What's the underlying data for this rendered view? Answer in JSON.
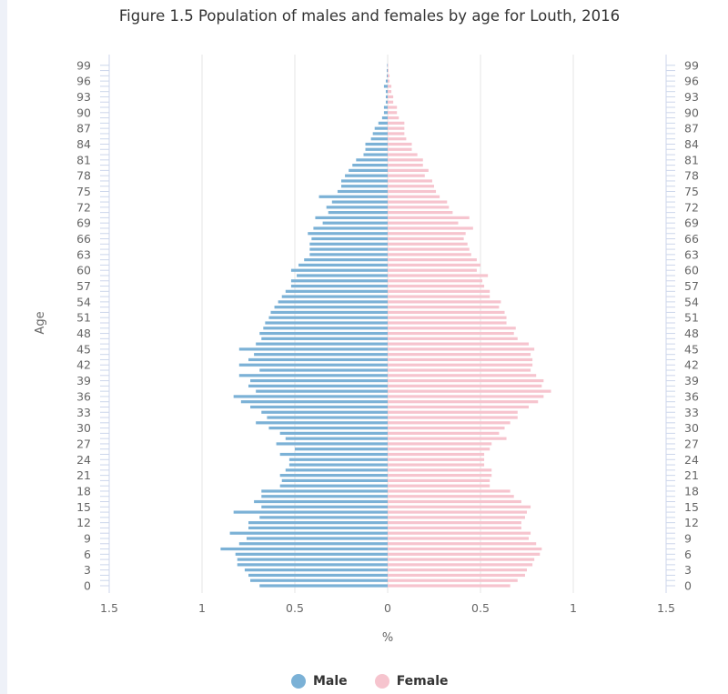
{
  "chart_data": {
    "type": "bar",
    "orientation": "horizontal",
    "layout": "population-pyramid",
    "title": "Figure 1.5 Population of males and females by age for Louth, 2016",
    "xlabel": "%",
    "ylabel": "Age",
    "xlim": [
      -1.5,
      1.5
    ],
    "x_tick_values": [
      -1.5,
      -1,
      -0.5,
      0,
      0.5,
      1,
      1.5
    ],
    "x_tick_labels": [
      "1.5",
      "1",
      "0.5",
      "0",
      "0.5",
      "1",
      "1.5"
    ],
    "y_tick_labels": [
      "0",
      "3",
      "6",
      "9",
      "12",
      "15",
      "18",
      "21",
      "24",
      "27",
      "30",
      "33",
      "36",
      "39",
      "42",
      "45",
      "48",
      "51",
      "54",
      "57",
      "60",
      "63",
      "66",
      "69",
      "72",
      "75",
      "78",
      "81",
      "84",
      "87",
      "90",
      "93",
      "96",
      "99"
    ],
    "categories": [
      0,
      1,
      2,
      3,
      4,
      5,
      6,
      7,
      8,
      9,
      10,
      11,
      12,
      13,
      14,
      15,
      16,
      17,
      18,
      19,
      20,
      21,
      22,
      23,
      24,
      25,
      26,
      27,
      28,
      29,
      30,
      31,
      32,
      33,
      34,
      35,
      36,
      37,
      38,
      39,
      40,
      41,
      42,
      43,
      44,
      45,
      46,
      47,
      48,
      49,
      50,
      51,
      52,
      53,
      54,
      55,
      56,
      57,
      58,
      59,
      60,
      61,
      62,
      63,
      64,
      65,
      66,
      67,
      68,
      69,
      70,
      71,
      72,
      73,
      74,
      75,
      76,
      77,
      78,
      79,
      80,
      81,
      82,
      83,
      84,
      85,
      86,
      87,
      88,
      89,
      90,
      91,
      92,
      93,
      94,
      95,
      96,
      97,
      98,
      99
    ],
    "series": [
      {
        "name": "Male",
        "color": "#7bb1d6",
        "values": [
          0.69,
          0.74,
          0.75,
          0.77,
          0.81,
          0.81,
          0.82,
          0.9,
          0.8,
          0.76,
          0.85,
          0.75,
          0.75,
          0.69,
          0.83,
          0.68,
          0.72,
          0.68,
          0.68,
          0.58,
          0.57,
          0.58,
          0.55,
          0.53,
          0.53,
          0.58,
          0.5,
          0.6,
          0.55,
          0.58,
          0.64,
          0.71,
          0.65,
          0.68,
          0.74,
          0.79,
          0.83,
          0.71,
          0.75,
          0.74,
          0.8,
          0.69,
          0.8,
          0.75,
          0.72,
          0.8,
          0.71,
          0.68,
          0.69,
          0.67,
          0.66,
          0.64,
          0.63,
          0.61,
          0.59,
          0.57,
          0.55,
          0.52,
          0.52,
          0.49,
          0.52,
          0.48,
          0.45,
          0.42,
          0.42,
          0.42,
          0.41,
          0.43,
          0.4,
          0.35,
          0.39,
          0.32,
          0.33,
          0.3,
          0.37,
          0.27,
          0.25,
          0.25,
          0.23,
          0.21,
          0.19,
          0.17,
          0.13,
          0.12,
          0.12,
          0.09,
          0.08,
          0.07,
          0.05,
          0.03,
          0.02,
          0.02,
          0.01,
          0.01,
          0.01,
          0.02,
          0.01,
          0.005,
          0.005,
          0.003
        ]
      },
      {
        "name": "Female",
        "color": "#f6c4ce",
        "values": [
          0.66,
          0.7,
          0.74,
          0.75,
          0.78,
          0.79,
          0.82,
          0.83,
          0.8,
          0.76,
          0.77,
          0.72,
          0.72,
          0.74,
          0.75,
          0.77,
          0.72,
          0.68,
          0.66,
          0.55,
          0.55,
          0.56,
          0.56,
          0.52,
          0.52,
          0.52,
          0.55,
          0.56,
          0.64,
          0.6,
          0.63,
          0.66,
          0.7,
          0.7,
          0.76,
          0.81,
          0.84,
          0.88,
          0.83,
          0.84,
          0.8,
          0.77,
          0.78,
          0.78,
          0.77,
          0.79,
          0.76,
          0.7,
          0.68,
          0.69,
          0.64,
          0.64,
          0.63,
          0.6,
          0.61,
          0.55,
          0.55,
          0.52,
          0.51,
          0.54,
          0.48,
          0.5,
          0.48,
          0.45,
          0.44,
          0.43,
          0.41,
          0.42,
          0.46,
          0.38,
          0.44,
          0.35,
          0.33,
          0.32,
          0.28,
          0.26,
          0.25,
          0.24,
          0.2,
          0.22,
          0.19,
          0.19,
          0.16,
          0.13,
          0.13,
          0.1,
          0.09,
          0.09,
          0.09,
          0.06,
          0.05,
          0.05,
          0.03,
          0.03,
          0.02,
          0.02,
          0.01,
          0.01,
          0.005,
          0.003
        ]
      }
    ],
    "grid": true,
    "legend_position": "bottom-center"
  }
}
